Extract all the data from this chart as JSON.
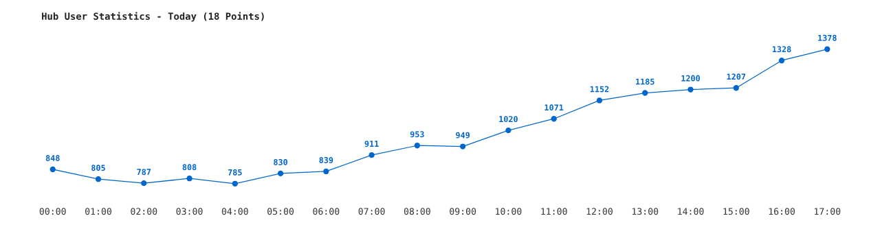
{
  "chart_data": {
    "type": "line",
    "title": "Hub User Statistics - Today (18 Points)",
    "categories": [
      "00:00",
      "01:00",
      "02:00",
      "03:00",
      "04:00",
      "05:00",
      "06:00",
      "07:00",
      "08:00",
      "09:00",
      "10:00",
      "11:00",
      "12:00",
      "13:00",
      "14:00",
      "15:00",
      "16:00",
      "17:00"
    ],
    "series": [
      {
        "color": "#0066cc",
        "values": [
          848,
          805,
          787,
          808,
          785,
          830,
          839,
          911,
          953,
          949,
          1020,
          1071,
          1152,
          1185,
          1200,
          1207,
          1328,
          1378
        ]
      }
    ],
    "data_labels": true,
    "marker": "circle",
    "line_style": "solid",
    "grid": false,
    "legend": false
  }
}
